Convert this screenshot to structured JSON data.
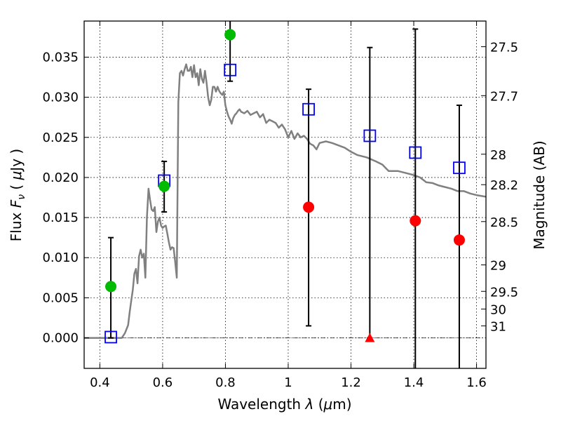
{
  "chart_data": {
    "type": "scatter",
    "xlabel": "Wavelength",
    "xlabel_symbol": "λ",
    "xlabel_unit_open": "(",
    "xlabel_unit_mu": "μ",
    "xlabel_unit_rest": "m)",
    "ylabel": "Flux",
    "ylabel_symbol": "F",
    "ylabel_sub": "ν",
    "ylabel_unit_open": "(",
    "ylabel_unit_mu": "μ",
    "ylabel_unit_rest": "Jy )",
    "y2label": "Magnitude (AB)",
    "xlim": [
      0.35,
      1.63
    ],
    "ylim": [
      -0.0038,
      0.0395
    ],
    "x_ticks": [
      0.4,
      0.6,
      0.8,
      1.0,
      1.2,
      1.4,
      1.6
    ],
    "x_tick_labels": [
      "0.4",
      "0.6",
      "0.8",
      "1",
      "1.2",
      "1.4",
      "1.6"
    ],
    "y_ticks": [
      0.0,
      0.005,
      0.01,
      0.015,
      0.02,
      0.025,
      0.03,
      0.035
    ],
    "y_tick_labels": [
      "0.000",
      "0.005",
      "0.010",
      "0.015",
      "0.020",
      "0.025",
      "0.030",
      "0.035"
    ],
    "mag_ticks": [
      {
        "label": "27.5",
        "flux": 0.0363
      },
      {
        "label": "27.7",
        "flux": 0.0302
      },
      {
        "label": "28",
        "flux": 0.0229
      },
      {
        "label": "28.2",
        "flux": 0.0191
      },
      {
        "label": "28.5",
        "flux": 0.0145
      },
      {
        "label": "29",
        "flux": 0.0091
      },
      {
        "label": "29.5",
        "flux": 0.0058
      },
      {
        "label": "30",
        "flux": 0.0036
      },
      {
        "label": "31",
        "flux": 0.0015
      }
    ],
    "grid": true,
    "series": [
      {
        "kind": "line",
        "color": "#808080",
        "x": [
          0.35,
          0.45,
          0.47,
          0.48,
          0.49,
          0.495,
          0.5,
          0.505,
          0.51,
          0.515,
          0.52,
          0.525,
          0.53,
          0.535,
          0.54,
          0.545,
          0.55,
          0.555,
          0.56,
          0.565,
          0.57,
          0.575,
          0.58,
          0.585,
          0.59,
          0.595,
          0.6,
          0.605,
          0.61,
          0.615,
          0.62,
          0.625,
          0.63,
          0.635,
          0.64,
          0.645,
          0.65,
          0.655,
          0.66,
          0.665,
          0.67,
          0.675,
          0.68,
          0.685,
          0.69,
          0.695,
          0.7,
          0.705,
          0.71,
          0.715,
          0.72,
          0.725,
          0.73,
          0.735,
          0.74,
          0.745,
          0.75,
          0.755,
          0.76,
          0.765,
          0.77,
          0.775,
          0.78,
          0.785,
          0.79,
          0.795,
          0.8,
          0.805,
          0.81,
          0.815,
          0.82,
          0.825,
          0.83,
          0.835,
          0.84,
          0.845,
          0.85,
          0.86,
          0.87,
          0.88,
          0.89,
          0.9,
          0.91,
          0.92,
          0.93,
          0.94,
          0.95,
          0.96,
          0.97,
          0.98,
          0.99,
          1.0,
          1.01,
          1.02,
          1.03,
          1.04,
          1.05,
          1.06,
          1.07,
          1.08,
          1.09,
          1.1,
          1.12,
          1.14,
          1.16,
          1.18,
          1.2,
          1.22,
          1.25,
          1.28,
          1.3,
          1.32,
          1.35,
          1.38,
          1.4,
          1.42,
          1.44,
          1.46,
          1.48,
          1.5,
          1.52,
          1.54,
          1.56,
          1.58,
          1.6,
          1.63
        ],
        "y": [
          0.0,
          0.0,
          0.0,
          0.0006,
          0.0016,
          0.0032,
          0.0046,
          0.006,
          0.008,
          0.0086,
          0.0068,
          0.0102,
          0.011,
          0.01,
          0.0105,
          0.0075,
          0.015,
          0.0186,
          0.0172,
          0.016,
          0.0158,
          0.0163,
          0.0132,
          0.0145,
          0.015,
          0.014,
          0.0137,
          0.0139,
          0.014,
          0.013,
          0.0119,
          0.011,
          0.0113,
          0.0112,
          0.0095,
          0.0075,
          0.0294,
          0.033,
          0.0333,
          0.0327,
          0.0335,
          0.0341,
          0.0333,
          0.0333,
          0.0338,
          0.0325,
          0.034,
          0.0325,
          0.033,
          0.0315,
          0.0335,
          0.0323,
          0.0318,
          0.0333,
          0.0318,
          0.03,
          0.029,
          0.0297,
          0.0313,
          0.0313,
          0.0307,
          0.0313,
          0.0308,
          0.0305,
          0.0303,
          0.0307,
          0.029,
          0.0282,
          0.0276,
          0.0272,
          0.0267,
          0.0274,
          0.0278,
          0.028,
          0.0283,
          0.0285,
          0.0282,
          0.028,
          0.0283,
          0.0278,
          0.028,
          0.0282,
          0.0275,
          0.0279,
          0.0268,
          0.0272,
          0.027,
          0.0268,
          0.0262,
          0.0266,
          0.026,
          0.025,
          0.0258,
          0.0248,
          0.0255,
          0.025,
          0.0252,
          0.0248,
          0.0242,
          0.024,
          0.0235,
          0.0243,
          0.0245,
          0.0243,
          0.024,
          0.0237,
          0.0232,
          0.0228,
          0.0225,
          0.022,
          0.0216,
          0.0208,
          0.0208,
          0.0205,
          0.0203,
          0.02,
          0.0194,
          0.0193,
          0.019,
          0.0188,
          0.0186,
          0.0183,
          0.0183,
          0.018,
          0.0178,
          0.0176
        ]
      },
      {
        "kind": "open-square",
        "color": "#0000ff",
        "x": [
          0.435,
          0.605,
          0.815,
          1.065,
          1.26,
          1.405,
          1.545
        ],
        "y": [
          0.0001,
          0.0196,
          0.0334,
          0.0285,
          0.0252,
          0.0231,
          0.0212
        ],
        "err_low": [
          0.0,
          0.0157,
          0.032,
          0.0015,
          0.0,
          -0.0038,
          -0.0038
        ],
        "err_high": [
          0.0125,
          0.022,
          0.0395,
          0.031,
          0.0362,
          0.0385,
          0.029
        ]
      },
      {
        "kind": "filled-circle",
        "color": "#00bb00",
        "x": [
          0.435,
          0.605,
          0.815
        ],
        "y": [
          0.0064,
          0.0189,
          0.0378
        ]
      },
      {
        "kind": "filled-circle",
        "color": "#ff0000",
        "x": [
          1.065,
          1.405,
          1.545
        ],
        "y": [
          0.0163,
          0.0146,
          0.0122
        ]
      },
      {
        "kind": "filled-triangle",
        "color": "#ff0000",
        "x": [
          1.26
        ],
        "y": [
          0.0
        ]
      }
    ]
  }
}
